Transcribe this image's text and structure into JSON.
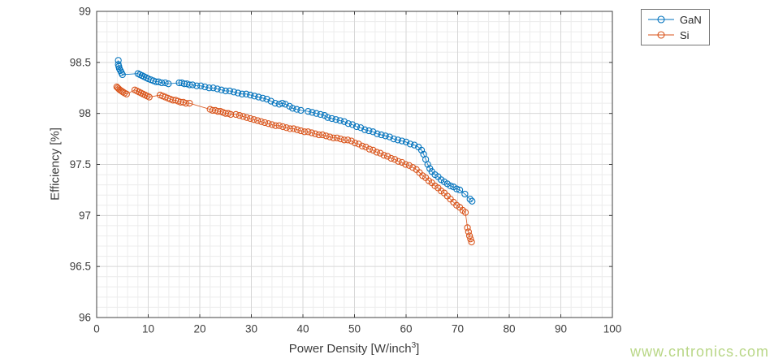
{
  "figure": {
    "background": "#ffffff",
    "watermark": {
      "text": "www.cntronics.com",
      "color": "#b9d787"
    }
  },
  "chart_data": {
    "type": "scatter",
    "title": "",
    "xlabel": {
      "pre": "Power Density [W/inch",
      "sup": "3",
      "post": "]"
    },
    "ylabel": "Efficiency [%]",
    "xlim": [
      0,
      100
    ],
    "ylim": [
      96,
      99
    ],
    "x_major_ticks": [
      0,
      10,
      20,
      30,
      40,
      50,
      60,
      70,
      80,
      90,
      100
    ],
    "x_tick_labels": [
      "0",
      "10",
      "20",
      "30",
      "40",
      "50",
      "60",
      "70",
      "80",
      "90",
      "100"
    ],
    "y_major_ticks": [
      96,
      96.5,
      97,
      97.5,
      98,
      98.5,
      99
    ],
    "y_tick_labels": [
      "96",
      "96.5",
      "97",
      "97.5",
      "98",
      "98.5",
      "99"
    ],
    "x_minor_step": 2,
    "y_minor_step": 0.1,
    "grid": true,
    "minor_grid": true,
    "legend_position": "outside-top-right",
    "axis_color": "#404040",
    "tick_label_color": "#3d3d3d",
    "grid_major_color": "#d7d7d7",
    "grid_minor_color": "#ececec",
    "series": [
      {
        "name": "GaN",
        "color": "#0072BD",
        "marker": "circle",
        "points": [
          [
            4.2,
            98.52
          ],
          [
            4.2,
            98.48
          ],
          [
            4.3,
            98.46
          ],
          [
            4.4,
            98.44
          ],
          [
            4.6,
            98.42
          ],
          [
            4.8,
            98.4
          ],
          [
            5.0,
            98.38
          ],
          [
            8.0,
            98.39
          ],
          [
            8.4,
            98.38
          ],
          [
            8.8,
            98.37
          ],
          [
            9.2,
            98.36
          ],
          [
            9.6,
            98.35
          ],
          [
            10.0,
            98.34
          ],
          [
            10.5,
            98.33
          ],
          [
            11.0,
            98.32
          ],
          [
            11.5,
            98.31
          ],
          [
            12.0,
            98.31
          ],
          [
            12.6,
            98.3
          ],
          [
            13.3,
            98.3
          ],
          [
            13.9,
            98.29
          ],
          [
            16.0,
            98.3
          ],
          [
            16.5,
            98.3
          ],
          [
            17.0,
            98.29
          ],
          [
            17.5,
            98.29
          ],
          [
            18.0,
            98.28
          ],
          [
            18.6,
            98.28
          ],
          [
            19.4,
            98.27
          ],
          [
            20.2,
            98.27
          ],
          [
            21.0,
            98.26
          ],
          [
            21.8,
            98.25
          ],
          [
            22.6,
            98.25
          ],
          [
            23.4,
            98.24
          ],
          [
            24.2,
            98.23
          ],
          [
            25.0,
            98.22
          ],
          [
            25.8,
            98.22
          ],
          [
            26.6,
            98.21
          ],
          [
            27.4,
            98.2
          ],
          [
            28.2,
            98.19
          ],
          [
            29.0,
            98.19
          ],
          [
            29.8,
            98.18
          ],
          [
            30.6,
            98.17
          ],
          [
            31.4,
            98.16
          ],
          [
            32.2,
            98.15
          ],
          [
            33.0,
            98.14
          ],
          [
            33.8,
            98.12
          ],
          [
            34.6,
            98.1
          ],
          [
            35.4,
            98.09
          ],
          [
            36.0,
            98.1
          ],
          [
            36.6,
            98.09
          ],
          [
            37.4,
            98.07
          ],
          [
            38.0,
            98.05
          ],
          [
            38.8,
            98.04
          ],
          [
            39.6,
            98.03
          ],
          [
            41.0,
            98.02
          ],
          [
            41.8,
            98.01
          ],
          [
            42.6,
            98.0
          ],
          [
            43.4,
            97.99
          ],
          [
            44.2,
            97.98
          ],
          [
            44.8,
            97.96
          ],
          [
            45.6,
            97.95
          ],
          [
            46.4,
            97.94
          ],
          [
            47.2,
            97.93
          ],
          [
            48.0,
            97.92
          ],
          [
            48.8,
            97.9
          ],
          [
            49.6,
            97.89
          ],
          [
            50.4,
            97.87
          ],
          [
            51.2,
            97.86
          ],
          [
            52.0,
            97.84
          ],
          [
            52.8,
            97.83
          ],
          [
            53.6,
            97.82
          ],
          [
            54.4,
            97.8
          ],
          [
            55.2,
            97.79
          ],
          [
            56.0,
            97.78
          ],
          [
            56.8,
            97.77
          ],
          [
            57.6,
            97.75
          ],
          [
            58.4,
            97.74
          ],
          [
            59.2,
            97.73
          ],
          [
            60.0,
            97.72
          ],
          [
            60.8,
            97.7
          ],
          [
            61.6,
            97.69
          ],
          [
            62.4,
            97.67
          ],
          [
            63.0,
            97.64
          ],
          [
            63.4,
            97.6
          ],
          [
            63.8,
            97.55
          ],
          [
            64.2,
            97.5
          ],
          [
            64.6,
            97.46
          ],
          [
            65.0,
            97.43
          ],
          [
            65.6,
            97.4
          ],
          [
            66.2,
            97.38
          ],
          [
            66.8,
            97.35
          ],
          [
            67.4,
            97.33
          ],
          [
            68.0,
            97.31
          ],
          [
            68.6,
            97.29
          ],
          [
            69.2,
            97.28
          ],
          [
            69.8,
            97.26
          ],
          [
            70.4,
            97.25
          ],
          [
            71.4,
            97.21
          ],
          [
            72.4,
            97.16
          ],
          [
            72.8,
            97.14
          ]
        ]
      },
      {
        "name": "Si",
        "color": "#D95319",
        "marker": "circle",
        "points": [
          [
            3.9,
            98.26
          ],
          [
            4.1,
            98.25
          ],
          [
            4.3,
            98.24
          ],
          [
            4.5,
            98.23
          ],
          [
            4.8,
            98.22
          ],
          [
            5.1,
            98.21
          ],
          [
            5.4,
            98.2
          ],
          [
            5.8,
            98.19
          ],
          [
            7.4,
            98.23
          ],
          [
            7.8,
            98.22
          ],
          [
            8.2,
            98.21
          ],
          [
            8.6,
            98.2
          ],
          [
            9.0,
            98.19
          ],
          [
            9.4,
            98.18
          ],
          [
            9.8,
            98.17
          ],
          [
            10.2,
            98.16
          ],
          [
            12.3,
            98.18
          ],
          [
            12.8,
            98.17
          ],
          [
            13.3,
            98.16
          ],
          [
            13.8,
            98.15
          ],
          [
            14.3,
            98.14
          ],
          [
            14.8,
            98.13
          ],
          [
            15.3,
            98.13
          ],
          [
            15.8,
            98.12
          ],
          [
            16.3,
            98.11
          ],
          [
            16.8,
            98.11
          ],
          [
            17.3,
            98.1
          ],
          [
            18.0,
            98.1
          ],
          [
            22.0,
            98.04
          ],
          [
            22.5,
            98.03
          ],
          [
            23.0,
            98.03
          ],
          [
            23.5,
            98.02
          ],
          [
            24.0,
            98.02
          ],
          [
            24.5,
            98.01
          ],
          [
            25.0,
            98.0
          ],
          [
            25.5,
            98.0
          ],
          [
            26.0,
            97.99
          ],
          [
            27.0,
            97.99
          ],
          [
            27.7,
            97.98
          ],
          [
            28.4,
            97.97
          ],
          [
            29.1,
            97.96
          ],
          [
            29.8,
            97.95
          ],
          [
            30.5,
            97.94
          ],
          [
            31.2,
            97.93
          ],
          [
            31.9,
            97.92
          ],
          [
            32.6,
            97.91
          ],
          [
            33.3,
            97.9
          ],
          [
            34.0,
            97.89
          ],
          [
            34.7,
            97.88
          ],
          [
            35.4,
            97.88
          ],
          [
            36.1,
            97.87
          ],
          [
            36.8,
            97.86
          ],
          [
            37.5,
            97.85
          ],
          [
            38.2,
            97.85
          ],
          [
            38.9,
            97.84
          ],
          [
            39.6,
            97.83
          ],
          [
            40.3,
            97.82
          ],
          [
            41.0,
            97.82
          ],
          [
            41.7,
            97.81
          ],
          [
            42.4,
            97.8
          ],
          [
            43.1,
            97.79
          ],
          [
            43.8,
            97.79
          ],
          [
            44.5,
            97.78
          ],
          [
            45.2,
            97.77
          ],
          [
            45.9,
            97.76
          ],
          [
            46.6,
            97.76
          ],
          [
            47.3,
            97.75
          ],
          [
            48.0,
            97.74
          ],
          [
            48.7,
            97.74
          ],
          [
            49.4,
            97.73
          ],
          [
            50.1,
            97.71
          ],
          [
            50.8,
            97.7
          ],
          [
            51.5,
            97.68
          ],
          [
            52.2,
            97.67
          ],
          [
            52.9,
            97.65
          ],
          [
            53.6,
            97.64
          ],
          [
            54.3,
            97.62
          ],
          [
            55.0,
            97.61
          ],
          [
            55.7,
            97.59
          ],
          [
            56.4,
            97.58
          ],
          [
            57.1,
            97.56
          ],
          [
            57.8,
            97.55
          ],
          [
            58.5,
            97.53
          ],
          [
            59.2,
            97.52
          ],
          [
            59.9,
            97.5
          ],
          [
            60.6,
            97.49
          ],
          [
            61.3,
            97.47
          ],
          [
            62.0,
            97.45
          ],
          [
            62.6,
            97.42
          ],
          [
            63.2,
            97.39
          ],
          [
            63.8,
            97.37
          ],
          [
            64.4,
            97.34
          ],
          [
            65.0,
            97.32
          ],
          [
            65.6,
            97.29
          ],
          [
            66.2,
            97.27
          ],
          [
            66.8,
            97.24
          ],
          [
            67.4,
            97.22
          ],
          [
            68.0,
            97.19
          ],
          [
            68.6,
            97.16
          ],
          [
            69.2,
            97.13
          ],
          [
            69.8,
            97.1
          ],
          [
            70.4,
            97.08
          ],
          [
            71.0,
            97.05
          ],
          [
            71.5,
            97.03
          ],
          [
            71.9,
            96.88
          ],
          [
            72.1,
            96.84
          ],
          [
            72.3,
            96.8
          ],
          [
            72.5,
            96.77
          ],
          [
            72.7,
            96.74
          ]
        ]
      }
    ]
  }
}
